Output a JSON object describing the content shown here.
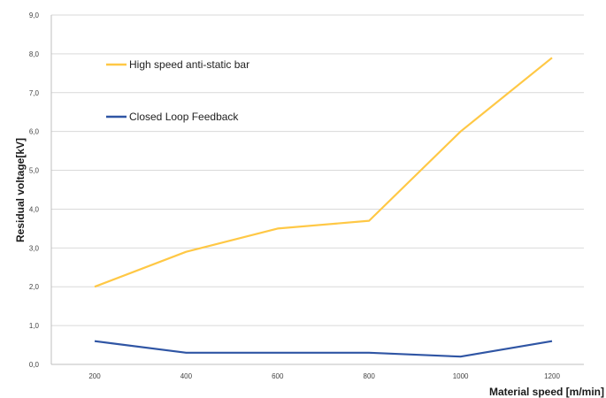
{
  "chart_data": {
    "type": "line",
    "title": "",
    "xlabel": "Material speed [m/min]",
    "ylabel": "Residual voltage[kV]",
    "x": [
      200,
      400,
      600,
      800,
      1000,
      1200
    ],
    "x_tick_labels": [
      "200",
      "400",
      "600",
      "800",
      "1000",
      "1200"
    ],
    "ylim": [
      0,
      9
    ],
    "y_tick_labels": [
      "0,0",
      "1,0",
      "2,0",
      "3,0",
      "4,0",
      "5,0",
      "6,0",
      "7,0",
      "8,0",
      "9,0"
    ],
    "grid": true,
    "legend_position": "top-left",
    "series": [
      {
        "name": "High speed anti-static bar",
        "color": "#FFC845",
        "values": [
          2.0,
          2.9,
          3.5,
          3.7,
          6.0,
          7.9
        ]
      },
      {
        "name": "Closed Loop Feedback",
        "color": "#2F55A4",
        "values": [
          0.6,
          0.3,
          0.3,
          0.3,
          0.2,
          0.6
        ]
      }
    ]
  }
}
